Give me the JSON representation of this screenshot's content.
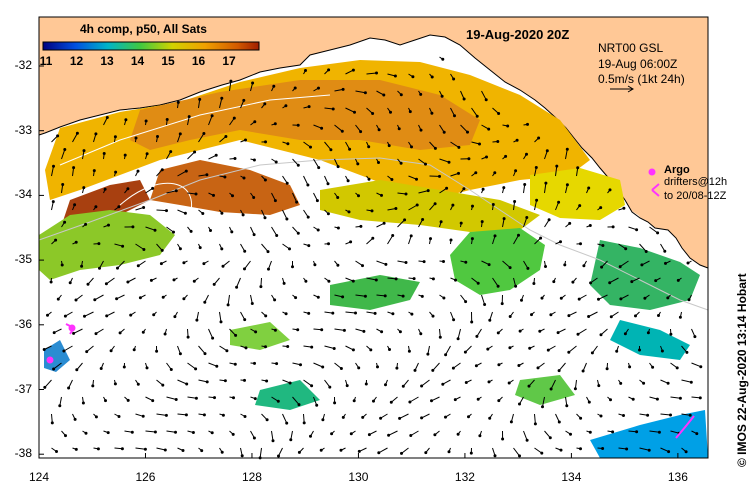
{
  "map": {
    "date_title": "19-Aug-2020 20Z",
    "colorbar": {
      "title": "4h comp, p50, All Sats",
      "ticks": [
        "11",
        "12",
        "13",
        "14",
        "15",
        "16",
        "17"
      ]
    },
    "info": {
      "line1": "NRT00 GSL",
      "line2": "19-Aug 06:00Z",
      "line3": "0.5m/s (1kt 24h)"
    },
    "legend": {
      "argo_label": "Argo",
      "drifters_line1": "drifters@12h",
      "drifters_line2": "to 20/08-12Z"
    },
    "credit": "© IMOS 22-Aug-2020 13:14 Hobart",
    "x_axis": {
      "ticks": [
        "124",
        "126",
        "128",
        "130",
        "132",
        "134",
        "136"
      ]
    },
    "y_axis": {
      "ticks": [
        "-32",
        "-33",
        "-34",
        "-35",
        "-36",
        "-37",
        "-38"
      ]
    },
    "colors": {
      "land": "#ffc896",
      "argo": "#ff33ff",
      "cold": "#0000a0",
      "warm": "#a02000"
    }
  }
}
